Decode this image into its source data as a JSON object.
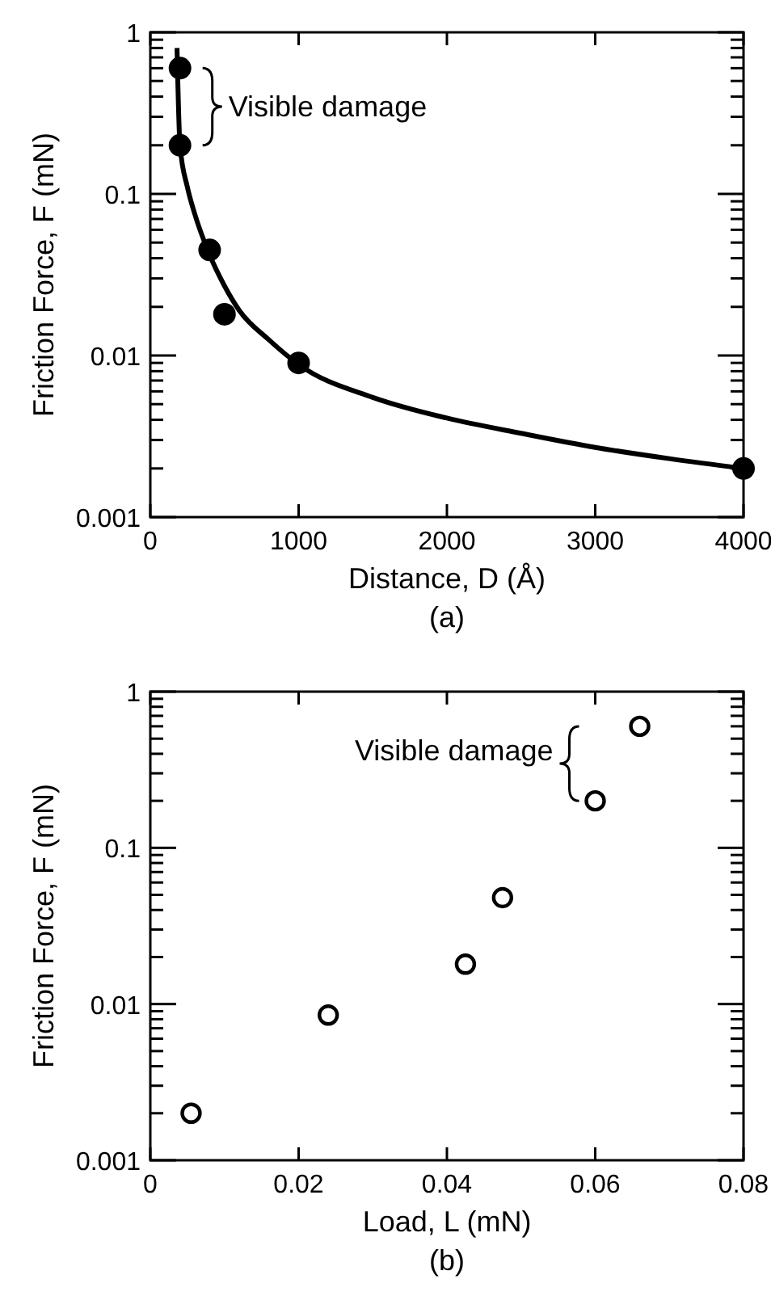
{
  "chart_data": [
    {
      "type": "scatter",
      "xlabel": "Distance, D (Å)",
      "ylabel": "Friction Force, F (mN)",
      "log": "y",
      "grid": false,
      "xlim": [
        0,
        4000
      ],
      "xticks": [
        0,
        1000,
        2000,
        3000,
        4000
      ],
      "ylim": [
        0.001,
        1
      ],
      "yticks": [
        0.001,
        {
          "value": 0.002,
          "label": null
        },
        {
          "value": 0.003,
          "label": null
        },
        {
          "value": 0.004,
          "label": null
        },
        {
          "value": 0.005,
          "label": null
        },
        {
          "value": 0.006,
          "label": null
        },
        {
          "value": 0.007,
          "label": null
        },
        {
          "value": 0.008,
          "label": null
        },
        {
          "value": 0.009,
          "label": null
        },
        0.01,
        {
          "value": 0.02,
          "label": null
        },
        {
          "value": 0.03,
          "label": null
        },
        {
          "value": 0.04,
          "label": null
        },
        {
          "value": 0.05,
          "label": null
        },
        {
          "value": 0.06,
          "label": null
        },
        {
          "value": 0.07,
          "label": null
        },
        {
          "value": 0.08,
          "label": null
        },
        {
          "value": 0.09,
          "label": null
        },
        0.1,
        {
          "value": 0.2,
          "label": null
        },
        {
          "value": 0.3,
          "label": null
        },
        {
          "value": 0.4,
          "label": null
        },
        {
          "value": 0.5,
          "label": null
        },
        {
          "value": 0.6,
          "label": null
        },
        {
          "value": 0.7,
          "label": null
        },
        {
          "value": 0.8,
          "label": null
        },
        {
          "value": 0.9,
          "label": null
        },
        1
      ],
      "series": [
        {
          "color": "#000000",
          "marker": "circle",
          "x": [
            200,
            200,
            400,
            500,
            1000,
            4000
          ],
          "values": [
            0.6,
            0.2,
            0.045,
            0.018,
            0.009,
            0.002
          ]
        },
        {
          "type": "line",
          "color": "#000000",
          "line_style": "solid",
          "x": [
            180,
            200,
            250,
            300,
            400,
            500,
            600,
            800,
            1000,
            1500,
            2000,
            2500,
            3000,
            3500,
            4000
          ],
          "values": [
            0.8,
            0.2,
            0.11,
            0.075,
            0.042,
            0.027,
            0.019,
            0.0125,
            0.0088,
            0.0055,
            0.0041,
            0.0033,
            0.0027,
            0.0023,
            0.002
          ]
        }
      ],
      "annotations": [
        "Visible damage",
        "(a)"
      ]
    },
    {
      "type": "scatter",
      "xlabel": "Load, L (mN)",
      "ylabel": "Friction Force, F (mN)",
      "log": "y",
      "grid": false,
      "xlim": [
        0,
        0.08
      ],
      "xticks": [
        0,
        0.02,
        0.04,
        0.06,
        0.08
      ],
      "ylim": [
        0.001,
        1
      ],
      "yticks": [
        0.001,
        {
          "value": 0.002,
          "label": null
        },
        {
          "value": 0.003,
          "label": null
        },
        {
          "value": 0.004,
          "label": null
        },
        {
          "value": 0.005,
          "label": null
        },
        {
          "value": 0.006,
          "label": null
        },
        {
          "value": 0.007,
          "label": null
        },
        {
          "value": 0.008,
          "label": null
        },
        {
          "value": 0.009,
          "label": null
        },
        0.01,
        {
          "value": 0.02,
          "label": null
        },
        {
          "value": 0.03,
          "label": null
        },
        {
          "value": 0.04,
          "label": null
        },
        {
          "value": 0.05,
          "label": null
        },
        {
          "value": 0.06,
          "label": null
        },
        {
          "value": 0.07,
          "label": null
        },
        {
          "value": 0.08,
          "label": null
        },
        {
          "value": 0.09,
          "label": null
        },
        0.1,
        {
          "value": 0.2,
          "label": null
        },
        {
          "value": 0.3,
          "label": null
        },
        {
          "value": 0.4,
          "label": null
        },
        {
          "value": 0.5,
          "label": null
        },
        {
          "value": 0.6,
          "label": null
        },
        {
          "value": 0.7,
          "label": null
        },
        {
          "value": 0.8,
          "label": null
        },
        {
          "value": 0.9,
          "label": null
        },
        1
      ],
      "series": [
        {
          "color": "#000000",
          "marker": "circle",
          "x": [
            0.0055,
            0.024,
            0.0425,
            0.0475,
            0.06,
            0.066
          ],
          "values": [
            0.002,
            0.0085,
            0.018,
            0.048,
            0.2,
            0.6
          ]
        }
      ],
      "annotations": [
        "Visible damage",
        "(b)"
      ]
    }
  ]
}
